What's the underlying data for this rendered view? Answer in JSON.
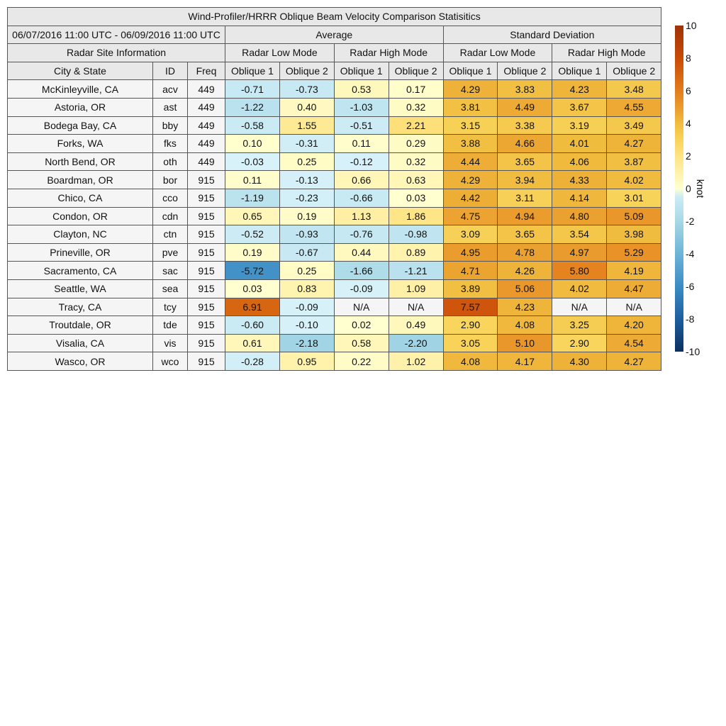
{
  "chart_data": {
    "type": "table",
    "title": "Wind-Profiler/HRRR Oblique Beam Velocity Comparison Statisitics",
    "date_range": "06/07/2016 11:00 UTC - 06/09/2016 11:00 UTC",
    "groups": [
      "Average",
      "Standard Deviation"
    ],
    "site_header": "Radar Site Information",
    "modes": [
      "Radar Low Mode",
      "Radar High Mode",
      "Radar Low Mode",
      "Radar High Mode"
    ],
    "columns": [
      "City & State",
      "ID",
      "Freq",
      "Oblique 1",
      "Oblique 2",
      "Oblique 1",
      "Oblique 2",
      "Oblique 1",
      "Oblique 2",
      "Oblique 1",
      "Oblique 2"
    ],
    "rows": [
      [
        "McKinleyville, CA",
        "acv",
        "449",
        "-0.71",
        "-0.73",
        "0.53",
        "0.17",
        "4.29",
        "3.83",
        "4.23",
        "3.48"
      ],
      [
        "Astoria, OR",
        "ast",
        "449",
        "-1.22",
        "0.40",
        "-1.03",
        "0.32",
        "3.81",
        "4.49",
        "3.67",
        "4.55"
      ],
      [
        "Bodega Bay, CA",
        "bby",
        "449",
        "-0.58",
        "1.55",
        "-0.51",
        "2.21",
        "3.15",
        "3.38",
        "3.19",
        "3.49"
      ],
      [
        "Forks, WA",
        "fks",
        "449",
        "0.10",
        "-0.31",
        "0.11",
        "0.29",
        "3.88",
        "4.66",
        "4.01",
        "4.27"
      ],
      [
        "North Bend, OR",
        "oth",
        "449",
        "-0.03",
        "0.25",
        "-0.12",
        "0.32",
        "4.44",
        "3.65",
        "4.06",
        "3.87"
      ],
      [
        "Boardman, OR",
        "bor",
        "915",
        "0.11",
        "-0.13",
        "0.66",
        "0.63",
        "4.29",
        "3.94",
        "4.33",
        "4.02"
      ],
      [
        "Chico, CA",
        "cco",
        "915",
        "-1.19",
        "-0.23",
        "-0.66",
        "0.03",
        "4.42",
        "3.11",
        "4.14",
        "3.01"
      ],
      [
        "Condon, OR",
        "cdn",
        "915",
        "0.65",
        "0.19",
        "1.13",
        "1.86",
        "4.75",
        "4.94",
        "4.80",
        "5.09"
      ],
      [
        "Clayton, NC",
        "ctn",
        "915",
        "-0.52",
        "-0.93",
        "-0.76",
        "-0.98",
        "3.09",
        "3.65",
        "3.54",
        "3.98"
      ],
      [
        "Prineville, OR",
        "pve",
        "915",
        "0.19",
        "-0.67",
        "0.44",
        "0.89",
        "4.95",
        "4.78",
        "4.97",
        "5.29"
      ],
      [
        "Sacramento, CA",
        "sac",
        "915",
        "-5.72",
        "0.25",
        "-1.66",
        "-1.21",
        "4.71",
        "4.26",
        "5.80",
        "4.19"
      ],
      [
        "Seattle, WA",
        "sea",
        "915",
        "0.03",
        "0.83",
        "-0.09",
        "1.09",
        "3.89",
        "5.06",
        "4.02",
        "4.47"
      ],
      [
        "Tracy, CA",
        "tcy",
        "915",
        "6.91",
        "-0.09",
        "N/A",
        "N/A",
        "7.57",
        "4.23",
        "N/A",
        "N/A"
      ],
      [
        "Troutdale, OR",
        "tde",
        "915",
        "-0.60",
        "-0.10",
        "0.02",
        "0.49",
        "2.90",
        "4.08",
        "3.25",
        "4.20"
      ],
      [
        "Visalia, CA",
        "vis",
        "915",
        "0.61",
        "-2.18",
        "0.58",
        "-2.20",
        "3.05",
        "5.10",
        "2.90",
        "4.54"
      ],
      [
        "Wasco, OR",
        "wco",
        "915",
        "-0.28",
        "0.95",
        "0.22",
        "1.02",
        "4.08",
        "4.17",
        "4.30",
        "4.27"
      ]
    ],
    "colorbar": {
      "label": "knot",
      "range": [
        -10,
        10
      ],
      "ticks": [
        "10",
        "8",
        "6",
        "4",
        "2",
        "0",
        "-2",
        "-4",
        "-6",
        "-8",
        "-10"
      ]
    }
  }
}
